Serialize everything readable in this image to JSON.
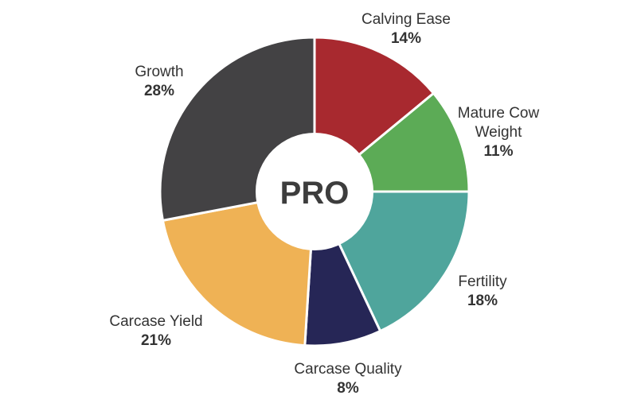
{
  "chart_data": {
    "type": "pie",
    "center_label": "PRO",
    "slices": [
      {
        "label": [
          "Calving Ease"
        ],
        "value": 14,
        "value_label": "14%",
        "color": "#a8292f"
      },
      {
        "label": [
          "Mature Cow",
          "Weight"
        ],
        "value": 11,
        "value_label": "11%",
        "color": "#5cab56"
      },
      {
        "label": [
          "Fertility"
        ],
        "value": 18,
        "value_label": "18%",
        "color": "#4fa59c"
      },
      {
        "label": [
          "Carcase Quality"
        ],
        "value": 8,
        "value_label": "8%",
        "color": "#262656"
      },
      {
        "label": [
          "Carcase Yield"
        ],
        "value": 21,
        "value_label": "21%",
        "color": "#efb255"
      },
      {
        "label": [
          "Growth"
        ],
        "value": 28,
        "value_label": "28%",
        "color": "#434244"
      }
    ]
  }
}
